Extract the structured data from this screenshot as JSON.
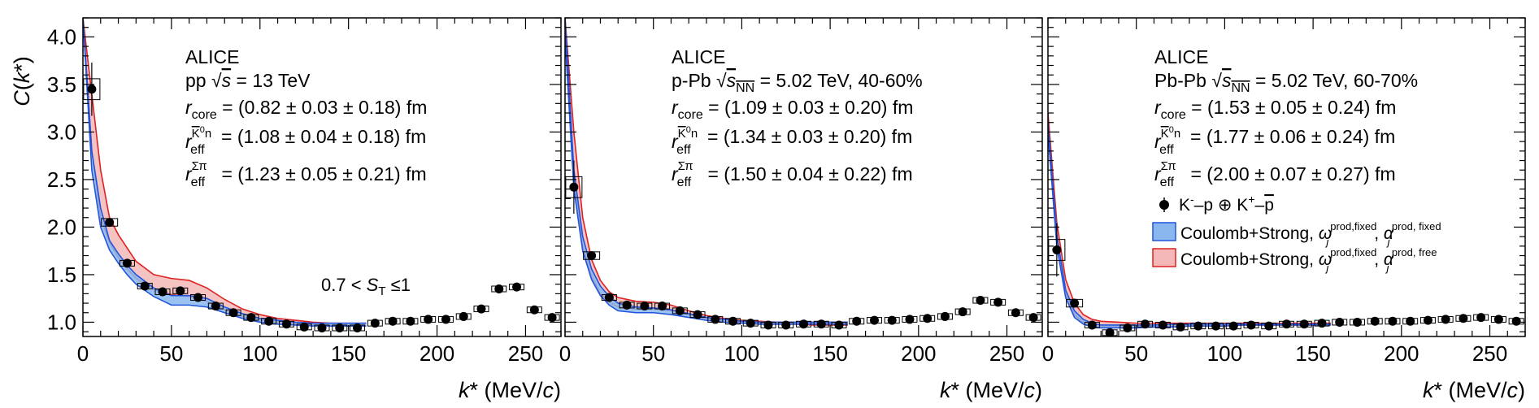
{
  "figure": {
    "y_axis_label": "C(k*)",
    "x_axis_label": "k* (MeV/c)",
    "y_ticks": [
      "1.0",
      "1.5",
      "2.0",
      "2.5",
      "3.0",
      "3.5",
      "4.0"
    ],
    "x_ticks": [
      "0",
      "50",
      "100",
      "150",
      "200",
      "250"
    ]
  },
  "legend": {
    "data_label": "K⁻–p ⊕ K⁺–p̄",
    "fixed_label": "Coulomb+Strong, ω_j^(prod,fixed), α_j^(prod, fixed)",
    "free_label": "Coulomb+Strong, ω_j^(prod,fixed), α_j^(prod, free)"
  },
  "colors": {
    "fixed_fill": "#8ab8ee",
    "fixed_line": "#2255dd",
    "free_fill": "#f4b8b8",
    "free_line": "#dd2222",
    "marker": "#000000"
  },
  "chart_data": [
    {
      "type": "scatter",
      "name": "pp",
      "title": "ALICE",
      "subtitle": "pp √s = 13 TeV",
      "params": [
        "r_core = (0.82 ± 0.03 ± 0.18) fm",
        "r_eff^(K̄0 n) = (1.08 ± 0.04 ± 0.18) fm",
        "r_eff^(Σπ) = (1.23 ± 0.05 ± 0.21) fm"
      ],
      "annotation": "0.7 < S_T ≤1",
      "xlim": [
        0,
        270
      ],
      "ylim": [
        0.85,
        4.2
      ],
      "xlabel": "k* (MeV/c)",
      "ylabel": "C(k*)",
      "x": [
        5,
        15,
        25,
        35,
        45,
        55,
        65,
        75,
        85,
        95,
        105,
        115,
        125,
        135,
        145,
        155,
        165,
        175,
        185,
        195,
        205,
        215,
        225,
        235,
        245,
        255,
        265
      ],
      "y": [
        3.45,
        2.05,
        1.62,
        1.38,
        1.32,
        1.33,
        1.26,
        1.17,
        1.1,
        1.05,
        1.01,
        0.98,
        0.95,
        0.94,
        0.94,
        0.94,
        0.99,
        1.01,
        1.01,
        1.03,
        1.03,
        1.06,
        1.14,
        1.35,
        1.37,
        1.13,
        1.05
      ],
      "fixed_band": {
        "x": [
          0,
          5,
          10,
          15,
          20,
          25,
          30,
          40,
          50,
          60,
          70,
          80,
          90,
          100,
          110,
          120,
          130,
          140,
          150,
          160
        ],
        "low": [
          4.2,
          2.6,
          2.0,
          1.76,
          1.62,
          1.5,
          1.4,
          1.27,
          1.18,
          1.18,
          1.16,
          1.1,
          1.04,
          1.0,
          0.98,
          0.97,
          0.96,
          0.96,
          0.96,
          0.96
        ],
        "high": [
          4.2,
          2.8,
          2.2,
          1.86,
          1.72,
          1.6,
          1.5,
          1.36,
          1.28,
          1.28,
          1.25,
          1.16,
          1.09,
          1.04,
          1.02,
          1.0,
          0.99,
          0.99,
          0.99,
          0.99
        ]
      },
      "free_band": {
        "x": [
          0,
          5,
          10,
          15,
          20,
          25,
          30,
          40,
          50,
          60,
          70,
          80,
          90,
          100,
          110,
          120,
          130,
          140,
          150,
          160
        ],
        "low": [
          4.2,
          2.8,
          2.1,
          1.84,
          1.68,
          1.56,
          1.46,
          1.34,
          1.29,
          1.27,
          1.22,
          1.13,
          1.06,
          1.02,
          1.0,
          0.98,
          0.97,
          0.96,
          0.96,
          0.96
        ],
        "high": [
          4.2,
          3.4,
          2.6,
          2.1,
          1.92,
          1.78,
          1.64,
          1.5,
          1.46,
          1.44,
          1.36,
          1.24,
          1.14,
          1.08,
          1.04,
          1.02,
          1.0,
          0.99,
          0.99,
          0.99
        ]
      }
    },
    {
      "type": "scatter",
      "name": "p-Pb",
      "title": "ALICE",
      "subtitle": "p-Pb √sNN = 5.02 TeV, 40-60%",
      "params": [
        "r_core = (1.09 ± 0.03 ± 0.20) fm",
        "r_eff^(K̄0 n) = (1.34 ± 0.03 ± 0.20) fm",
        "r_eff^(Σπ) = (1.50 ± 0.04 ± 0.22) fm"
      ],
      "annotation": "",
      "xlim": [
        0,
        270
      ],
      "ylim": [
        0.85,
        4.2
      ],
      "xlabel": "k* (MeV/c)",
      "ylabel": "",
      "x": [
        5,
        15,
        25,
        35,
        45,
        55,
        65,
        75,
        85,
        95,
        105,
        115,
        125,
        135,
        145,
        155,
        165,
        175,
        185,
        195,
        205,
        215,
        225,
        235,
        245,
        255,
        265
      ],
      "y": [
        2.42,
        1.7,
        1.26,
        1.18,
        1.17,
        1.17,
        1.12,
        1.08,
        1.03,
        1.01,
        0.99,
        0.97,
        0.97,
        0.98,
        0.98,
        0.97,
        1.01,
        1.02,
        1.02,
        1.03,
        1.04,
        1.06,
        1.11,
        1.23,
        1.21,
        1.1,
        1.05
      ],
      "fixed_band": {
        "x": [
          0,
          5,
          10,
          15,
          20,
          25,
          30,
          40,
          50,
          60,
          70,
          80,
          90,
          100,
          110,
          120,
          130,
          140,
          150,
          160
        ],
        "low": [
          4.0,
          2.4,
          1.75,
          1.45,
          1.28,
          1.18,
          1.12,
          1.1,
          1.1,
          1.08,
          1.05,
          1.02,
          1.0,
          0.99,
          0.98,
          0.98,
          0.98,
          0.98,
          0.98,
          0.98
        ],
        "high": [
          4.2,
          2.6,
          1.9,
          1.56,
          1.38,
          1.27,
          1.2,
          1.16,
          1.15,
          1.13,
          1.09,
          1.05,
          1.03,
          1.01,
          1.0,
          1.0,
          1.0,
          1.0,
          1.0,
          1.0
        ]
      },
      "free_band": {
        "x": [
          0,
          5,
          10,
          15,
          20,
          25,
          30,
          40,
          50,
          60,
          70,
          80,
          90,
          100,
          110,
          120,
          130,
          140,
          150,
          160
        ],
        "low": [
          4.0,
          2.5,
          1.8,
          1.48,
          1.3,
          1.21,
          1.16,
          1.14,
          1.14,
          1.12,
          1.08,
          1.04,
          1.01,
          0.99,
          0.98,
          0.98,
          0.98,
          0.97,
          0.97,
          0.97
        ],
        "high": [
          4.2,
          3.0,
          2.1,
          1.66,
          1.44,
          1.32,
          1.26,
          1.22,
          1.21,
          1.18,
          1.12,
          1.07,
          1.04,
          1.02,
          1.01,
          1.0,
          1.0,
          1.0,
          1.0,
          1.0
        ]
      }
    },
    {
      "type": "scatter",
      "name": "Pb-Pb",
      "title": "ALICE",
      "subtitle": "Pb-Pb √sNN = 5.02 TeV, 60-70%",
      "params": [
        "r_core = (1.53 ± 0.05 ± 0.24) fm",
        "r_eff^(K̄0 n) = (1.77 ± 0.06 ± 0.24) fm",
        "r_eff^(Σπ) = (2.00 ± 0.07 ± 0.27) fm"
      ],
      "annotation": "",
      "xlim": [
        0,
        270
      ],
      "ylim": [
        0.85,
        4.2
      ],
      "xlabel": "k* (MeV/c)",
      "ylabel": "",
      "x": [
        5,
        15,
        25,
        35,
        45,
        55,
        65,
        75,
        85,
        95,
        105,
        115,
        125,
        135,
        145,
        155,
        165,
        175,
        185,
        195,
        205,
        215,
        225,
        235,
        245,
        255,
        265
      ],
      "y": [
        1.76,
        1.2,
        0.97,
        0.89,
        0.94,
        0.98,
        0.97,
        0.95,
        0.96,
        0.96,
        0.96,
        0.97,
        0.96,
        0.98,
        0.98,
        0.99,
        1.0,
        1.0,
        1.01,
        1.01,
        1.01,
        1.02,
        1.03,
        1.04,
        1.05,
        1.03,
        1.01
      ],
      "fixed_band": {
        "x": [
          0,
          5,
          10,
          15,
          20,
          25,
          30,
          40,
          50,
          60,
          70,
          80,
          90,
          100,
          110,
          120,
          130,
          140,
          150,
          160
        ],
        "low": [
          3.0,
          1.8,
          1.26,
          1.05,
          0.98,
          0.95,
          0.94,
          0.94,
          0.94,
          0.95,
          0.95,
          0.96,
          0.96,
          0.96,
          0.97,
          0.97,
          0.97,
          0.97,
          0.97,
          0.97
        ],
        "high": [
          3.1,
          1.92,
          1.34,
          1.12,
          1.03,
          0.99,
          0.97,
          0.97,
          0.97,
          0.97,
          0.98,
          0.98,
          0.98,
          0.98,
          0.98,
          0.98,
          0.98,
          0.98,
          0.98,
          0.98
        ]
      },
      "free_band": {
        "x": [
          0,
          5,
          10,
          15,
          20,
          25,
          30,
          40,
          50,
          60,
          70,
          80,
          90,
          100,
          110,
          120,
          130,
          140,
          150,
          160
        ],
        "low": [
          3.0,
          1.85,
          1.3,
          1.08,
          1.0,
          0.96,
          0.95,
          0.95,
          0.95,
          0.95,
          0.96,
          0.96,
          0.96,
          0.96,
          0.97,
          0.97,
          0.97,
          0.97,
          0.97,
          0.97
        ],
        "high": [
          3.2,
          2.05,
          1.45,
          1.2,
          1.08,
          1.03,
          1.01,
          1.0,
          0.99,
          0.99,
          0.99,
          0.99,
          0.99,
          0.99,
          0.99,
          0.99,
          0.99,
          0.99,
          0.99,
          0.99
        ]
      }
    }
  ]
}
